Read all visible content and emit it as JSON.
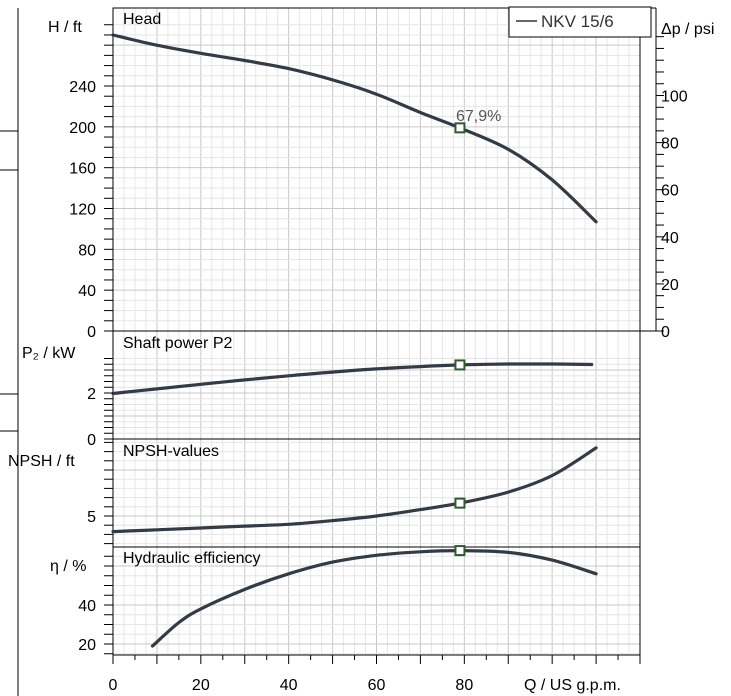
{
  "chart_data": [
    {
      "type": "line",
      "title": "Head",
      "ylabel": "H / ft",
      "ylabel_right": "Δp / psi",
      "ylim": [
        0,
        290
      ],
      "yticks": [
        0,
        40,
        80,
        120,
        160,
        200,
        240
      ],
      "yticks_right": [
        0,
        20,
        40,
        60,
        80,
        100
      ],
      "legend": "top-right",
      "series": [
        {
          "name": "NKV 15/6",
          "x": [
            0,
            10,
            20,
            30,
            40,
            50,
            60,
            70,
            79,
            90,
            100,
            110
          ],
          "y": [
            290,
            280,
            272,
            265,
            257,
            246,
            232,
            214,
            199,
            178,
            148,
            107
          ]
        }
      ],
      "duty_point": {
        "x": 79,
        "y": 199,
        "label": "67,9%"
      }
    },
    {
      "type": "line",
      "title": "Shaft power P2",
      "ylabel": "P₂ / kW",
      "ylim": [
        0,
        3.2
      ],
      "yticks": [
        0,
        2
      ],
      "series": [
        {
          "x": [
            0,
            10,
            20,
            30,
            40,
            50,
            60,
            70,
            79,
            90,
            100,
            109
          ],
          "y": [
            1.98,
            2.18,
            2.38,
            2.57,
            2.75,
            2.91,
            3.05,
            3.15,
            3.22,
            3.26,
            3.26,
            3.24
          ]
        }
      ],
      "duty_point": {
        "x": 79,
        "y": 3.22
      }
    },
    {
      "type": "line",
      "title": "NPSH-values",
      "ylabel": "NPSH / ft",
      "ylim": [
        0,
        12
      ],
      "yticks": [
        5
      ],
      "series": [
        {
          "x": [
            0,
            10,
            20,
            30,
            40,
            50,
            60,
            70,
            79,
            90,
            100,
            110
          ],
          "y": [
            3.3,
            3.5,
            3.7,
            3.9,
            4.1,
            4.5,
            5.0,
            5.7,
            6.4,
            7.6,
            9.4,
            12.4
          ]
        }
      ],
      "duty_point": {
        "x": 79,
        "y": 6.4
      }
    },
    {
      "type": "line",
      "title": "Hydraulic efficiency",
      "ylabel": "η / %",
      "ylim": [
        15,
        75
      ],
      "yticks": [
        20,
        40
      ],
      "series": [
        {
          "x": [
            9,
            15,
            20,
            30,
            40,
            50,
            60,
            70,
            79,
            90,
            100,
            110
          ],
          "y": [
            19,
            31,
            38,
            48,
            56,
            62,
            65.5,
            67.3,
            67.9,
            67,
            63,
            56
          ]
        }
      ],
      "duty_point": {
        "x": 79,
        "y": 67.9
      }
    }
  ],
  "x_axis": {
    "label": "Q / US g.p.m.",
    "xlim": [
      0,
      120
    ],
    "xticks": [
      0,
      20,
      40,
      60,
      80
    ]
  },
  "style": {
    "curve_color": "#333b46",
    "marker_color": "#2e5a2e",
    "grid_color": "#d6d6d6",
    "annot_color": "#555555"
  }
}
